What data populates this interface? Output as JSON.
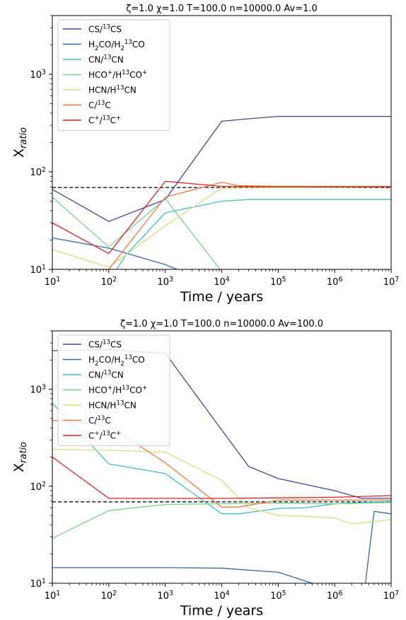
{
  "chart_data": [
    {
      "type": "line",
      "title": "ζ=1.0 χ=1.0 T=100.0 n=10000.0  Av=1.0",
      "xlabel": "Time / years",
      "ylabel": "X_ratio",
      "xscale": "log",
      "yscale": "log",
      "xlim": [
        10,
        10000000
      ],
      "ylim": [
        10,
        4000
      ],
      "x_ticks": [
        10,
        100,
        1000,
        10000,
        100000,
        1000000,
        10000000
      ],
      "y_ticks": [
        10,
        100,
        1000
      ],
      "legend_position": "upper-left",
      "reference_line": {
        "y": 69,
        "style": "dashed",
        "color": "#000000"
      },
      "series": [
        {
          "name": "CS/13CS",
          "color": "#4b3f96",
          "points": [
            [
              10,
              66
            ],
            [
              100,
              31
            ],
            [
              1000,
              52
            ],
            [
              10000,
              330
            ],
            [
              30000,
              350
            ],
            [
              100000,
              370
            ],
            [
              10000000,
              370
            ]
          ]
        },
        {
          "name": "H2CO/H2 13CO",
          "color": "#2f6aa8",
          "points": [
            [
              10,
              21
            ],
            [
              100,
              16.5
            ],
            [
              1000,
              11.2
            ],
            [
              2000,
              9.5
            ]
          ]
        },
        {
          "name": "CN/13CN",
          "color": "#3fbfc4",
          "points": [
            [
              130,
              9.5
            ],
            [
              200,
              14
            ],
            [
              1000,
              38
            ],
            [
              10000,
              50
            ],
            [
              30000,
              52
            ],
            [
              10000000,
              52
            ]
          ]
        },
        {
          "name": "HCO+/H13CO+",
          "color": "#7ccf92",
          "points": [
            [
              10,
              55
            ],
            [
              100,
              17
            ],
            [
              1000,
              53
            ],
            [
              10000,
              9.5
            ]
          ]
        },
        {
          "name": "HCN/H13CN",
          "color": "#d4e07a",
          "points": [
            [
              10,
              16
            ],
            [
              100,
              10.5
            ],
            [
              1000,
              28
            ],
            [
              10000,
              68
            ],
            [
              10000000,
              70
            ]
          ]
        },
        {
          "name": "C/13C",
          "color": "#f07840",
          "points": [
            [
              10,
              10
            ],
            [
              100,
              10
            ],
            [
              1000,
              55
            ],
            [
              10000,
              78
            ],
            [
              20000,
              72
            ],
            [
              100000,
              71
            ],
            [
              10000000,
              71
            ]
          ]
        },
        {
          "name": "C+/13C+",
          "color": "#e02020",
          "points": [
            [
              10,
              30
            ],
            [
              100,
              14.5
            ],
            [
              1000,
              80
            ],
            [
              10000,
              71
            ],
            [
              100000,
              70
            ],
            [
              10000000,
              70
            ]
          ]
        }
      ]
    },
    {
      "type": "line",
      "title": "ζ=1.0 χ=1.0 T=100.0 n=10000.0  Av=100.0",
      "xlabel": "Time / years",
      "ylabel": "X_ratio",
      "xscale": "log",
      "yscale": "log",
      "xlim": [
        10,
        10000000
      ],
      "ylim": [
        10,
        4000
      ],
      "x_ticks": [
        10,
        100,
        1000,
        10000,
        100000,
        1000000,
        10000000
      ],
      "y_ticks": [
        10,
        100,
        1000
      ],
      "legend_position": "upper-left",
      "reference_line": {
        "y": 69,
        "style": "dashed",
        "color": "#000000"
      },
      "series": [
        {
          "name": "CS/13CS",
          "color": "#4b3f96",
          "points": [
            [
              10,
              2500
            ],
            [
              100,
              2550
            ],
            [
              1000,
              2350
            ],
            [
              10000,
              380
            ],
            [
              30000,
              160
            ],
            [
              100000,
              120
            ],
            [
              1000000,
              90
            ],
            [
              3000000,
              75
            ],
            [
              10000000,
              75
            ]
          ]
        },
        {
          "name": "H2CO/H2 13CO",
          "color": "#2f6aa8",
          "points": [
            [
              10,
              14.5
            ],
            [
              1000,
              14.5
            ],
            [
              10000,
              14.3
            ],
            [
              100000,
              13
            ],
            [
              400000,
              10
            ],
            [
              3000000,
              8
            ],
            [
              3500000,
              10
            ],
            [
              5000000,
              55
            ],
            [
              10000000,
              52
            ]
          ]
        },
        {
          "name": "CN/13CN",
          "color": "#3fbfc4",
          "points": [
            [
              10,
              720
            ],
            [
              100,
              170
            ],
            [
              1000,
              135
            ],
            [
              10000,
              52
            ],
            [
              20000,
              52
            ],
            [
              100000,
              59
            ],
            [
              300000,
              60
            ],
            [
              1000000,
              66
            ],
            [
              10000000,
              70
            ]
          ]
        },
        {
          "name": "HCO+/H13CO+",
          "color": "#7ccf92",
          "points": [
            [
              10,
              29
            ],
            [
              100,
              56
            ],
            [
              1000,
              65
            ],
            [
              10000,
              66
            ],
            [
              100000,
              67
            ],
            [
              1000000,
              66
            ],
            [
              10000000,
              68
            ]
          ]
        },
        {
          "name": "HCN/H13CN",
          "color": "#d4e07a",
          "points": [
            [
              10,
              240
            ],
            [
              100,
              235
            ],
            [
              1000,
              225
            ],
            [
              10000,
              115
            ],
            [
              30000,
              60
            ],
            [
              100000,
              50
            ],
            [
              300000,
              49
            ],
            [
              1000000,
              47
            ],
            [
              2000000,
              41
            ],
            [
              10000000,
              45
            ]
          ]
        },
        {
          "name": "C/13C",
          "color": "#f07840",
          "points": [
            [
              10,
              480
            ],
            [
              100,
              420
            ],
            [
              1000,
              175
            ],
            [
              10000,
              61
            ],
            [
              20000,
              61
            ],
            [
              100000,
              72
            ],
            [
              1000000,
              72
            ],
            [
              10000000,
              72
            ]
          ]
        },
        {
          "name": "C+/13C+",
          "color": "#e02020",
          "points": [
            [
              10,
              200
            ],
            [
              100,
              75
            ],
            [
              1000,
              75
            ],
            [
              10000,
              75
            ],
            [
              100000,
              76
            ],
            [
              1000000,
              77
            ],
            [
              10000000,
              80
            ]
          ]
        }
      ]
    }
  ]
}
